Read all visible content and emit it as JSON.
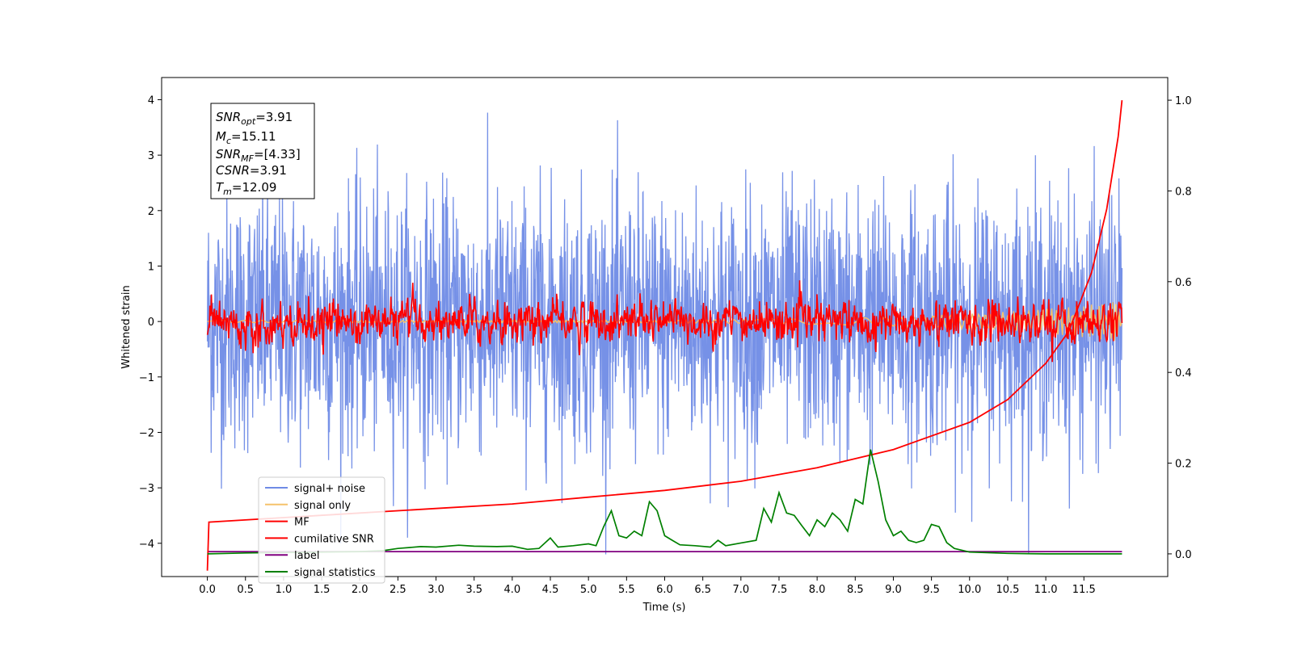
{
  "chart_data": {
    "type": "line",
    "title": "",
    "xlabel": "Time (s)",
    "ylabel": "Whitened strain",
    "xlim": [
      -0.6,
      12.6
    ],
    "ylim": [
      -4.6,
      4.4
    ],
    "y2lim": [
      -0.05,
      1.05
    ],
    "xticks": [
      "0.0",
      "0.5",
      "1.0",
      "1.5",
      "2.0",
      "2.5",
      "3.0",
      "3.5",
      "4.0",
      "4.5",
      "5.0",
      "5.5",
      "6.0",
      "6.5",
      "7.0",
      "7.5",
      "8.0",
      "8.5",
      "9.0",
      "9.5",
      "10.0",
      "10.5",
      "11.0",
      "11.5"
    ],
    "yticks": [
      "−4",
      "−3",
      "−2",
      "−1",
      "0",
      "1",
      "2",
      "3",
      "4"
    ],
    "y2ticks": [
      "0.0",
      "0.2",
      "0.4",
      "0.6",
      "0.8",
      "1.0"
    ],
    "grid": false,
    "legend_position": "lower-left",
    "stats_box": {
      "snr_opt": {
        "label": "SNR",
        "sub": "opt",
        "value": "=3.91"
      },
      "mc": {
        "label": "M",
        "sub": "c",
        "value": "=15.11"
      },
      "snr_mf": {
        "label": "SNR",
        "sub": "MF",
        "value": "=[4.33]"
      },
      "csnr": {
        "label": "CSNR",
        "sub": "",
        "value": "=3.91"
      },
      "tm": {
        "label": "T",
        "sub": "m",
        "value": "=12.09"
      }
    },
    "series": [
      {
        "name": "signal+ noise",
        "color": "#6f8be6",
        "axis": "left",
        "description": "whitened noise, approximately ±2.5 spread, peaks to ±4"
      },
      {
        "name": "signal only",
        "color": "#f5c26b",
        "axis": "left",
        "description": "near zero, grows slightly at end"
      },
      {
        "name": "MF",
        "color": "#ff0000",
        "axis": "left",
        "description": "matched-filter output around 0, amplitude ~0.4, spikes to ~0.9"
      },
      {
        "name": "cumilative SNR",
        "color": "#ff0000",
        "axis": "right",
        "x": [
          0.0,
          0.02,
          1.0,
          2.0,
          3.0,
          4.0,
          5.0,
          6.0,
          7.0,
          8.0,
          9.0,
          10.0,
          10.5,
          11.0,
          11.3,
          11.6,
          11.8,
          11.95,
          12.0
        ],
        "values": [
          -0.037,
          0.07,
          0.08,
          0.09,
          0.1,
          0.11,
          0.125,
          0.14,
          0.16,
          0.19,
          0.23,
          0.29,
          0.34,
          0.42,
          0.49,
          0.62,
          0.76,
          0.92,
          1.0
        ]
      },
      {
        "name": "label",
        "color": "#800080",
        "axis": "left",
        "x": [
          0.0,
          12.0
        ],
        "values": [
          -4.15,
          -4.15
        ]
      },
      {
        "name": "signal statistics",
        "color": "#008000",
        "axis": "right",
        "x": [
          0.0,
          0.5,
          1.0,
          1.5,
          2.0,
          2.3,
          2.5,
          2.8,
          3.0,
          3.3,
          3.5,
          3.8,
          4.0,
          4.2,
          4.35,
          4.5,
          4.6,
          4.8,
          5.0,
          5.1,
          5.2,
          5.3,
          5.4,
          5.5,
          5.6,
          5.7,
          5.8,
          5.9,
          6.0,
          6.1,
          6.2,
          6.4,
          6.6,
          6.7,
          6.8,
          7.0,
          7.2,
          7.3,
          7.4,
          7.5,
          7.6,
          7.7,
          7.8,
          7.9,
          8.0,
          8.1,
          8.2,
          8.3,
          8.4,
          8.5,
          8.6,
          8.7,
          8.8,
          8.9,
          9.0,
          9.1,
          9.2,
          9.3,
          9.4,
          9.5,
          9.6,
          9.7,
          9.8,
          10.0,
          10.5,
          11.0,
          12.0
        ],
        "values": [
          0.0,
          0.002,
          0.003,
          0.004,
          0.005,
          0.007,
          0.012,
          0.016,
          0.015,
          0.019,
          0.017,
          0.016,
          0.017,
          0.01,
          0.012,
          0.035,
          0.015,
          0.018,
          0.022,
          0.018,
          0.06,
          0.095,
          0.04,
          0.035,
          0.05,
          0.04,
          0.115,
          0.095,
          0.04,
          0.03,
          0.02,
          0.018,
          0.015,
          0.03,
          0.018,
          0.024,
          0.03,
          0.1,
          0.07,
          0.135,
          0.09,
          0.085,
          0.062,
          0.04,
          0.075,
          0.06,
          0.09,
          0.075,
          0.05,
          0.12,
          0.11,
          0.23,
          0.16,
          0.075,
          0.04,
          0.05,
          0.03,
          0.025,
          0.03,
          0.065,
          0.06,
          0.025,
          0.012,
          0.004,
          0.001,
          0.0,
          0.0
        ]
      }
    ]
  }
}
